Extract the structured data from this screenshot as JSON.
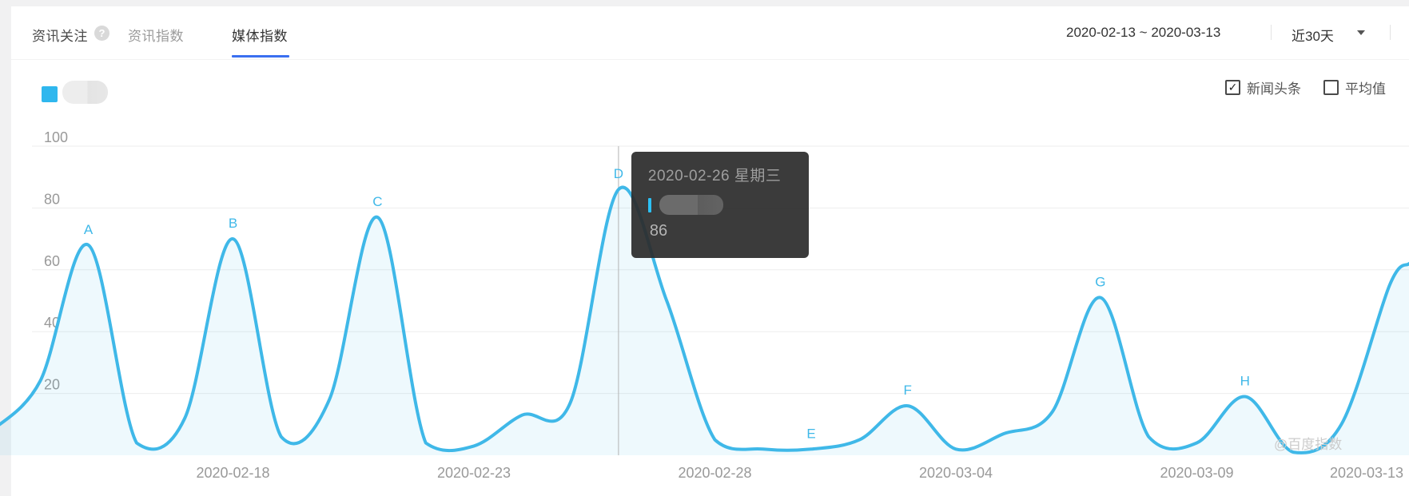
{
  "header": {
    "tabs": [
      {
        "label": "资讯关注",
        "active": false
      },
      {
        "label": "资讯指数",
        "active": false
      },
      {
        "label": "媒体指数",
        "active": true
      }
    ],
    "help_icon": "?",
    "date_range": "2020-02-13 ~ 2020-03-13",
    "period": "近30天"
  },
  "legend": {
    "swatch_color": "#2fb7ee",
    "keyword_blurred": true
  },
  "controls": {
    "checkboxes": [
      {
        "label": "新闻头条",
        "checked": true
      },
      {
        "label": "平均值",
        "checked": false
      }
    ],
    "check_glyph": "✓"
  },
  "chart_data": {
    "type": "line",
    "x": [
      "2020-02-13",
      "2020-02-14",
      "2020-02-15",
      "2020-02-16",
      "2020-02-17",
      "2020-02-18",
      "2020-02-19",
      "2020-02-20",
      "2020-02-21",
      "2020-02-22",
      "2020-02-23",
      "2020-02-24",
      "2020-02-25",
      "2020-02-26",
      "2020-02-27",
      "2020-02-28",
      "2020-02-29",
      "2020-03-01",
      "2020-03-02",
      "2020-03-03",
      "2020-03-04",
      "2020-03-05",
      "2020-03-06",
      "2020-03-07",
      "2020-03-08",
      "2020-03-09",
      "2020-03-10",
      "2020-03-11",
      "2020-03-12",
      "2020-03-13"
    ],
    "values": [
      8,
      24,
      68,
      4,
      12,
      70,
      6,
      18,
      77,
      4,
      3,
      13,
      17,
      86,
      50,
      5,
      2,
      2,
      5,
      16,
      2,
      7,
      14,
      51,
      6,
      4,
      19,
      1,
      10,
      55
    ],
    "right_edge_value": 62,
    "ylim": [
      0,
      100
    ],
    "y_ticks": [
      100,
      80,
      60,
      40,
      20
    ],
    "x_tick_indexes": [
      5,
      10,
      15,
      20,
      25,
      29
    ],
    "peak_labels": [
      {
        "label": "A",
        "index": 2
      },
      {
        "label": "B",
        "index": 5
      },
      {
        "label": "C",
        "index": 8
      },
      {
        "label": "D",
        "index": 13
      },
      {
        "label": "E",
        "index": 17
      },
      {
        "label": "F",
        "index": 19
      },
      {
        "label": "G",
        "index": 23
      },
      {
        "label": "H",
        "index": 26
      }
    ],
    "line_color": "#3fb8e8",
    "fill_color": "rgba(63,184,232,0.09)",
    "grid": true,
    "legend_position": "top-left"
  },
  "tooltip": {
    "date": "2020-02-26 星期三",
    "value": "86",
    "point_index": 13,
    "name_blurred": true
  },
  "watermark": "@百度指数"
}
